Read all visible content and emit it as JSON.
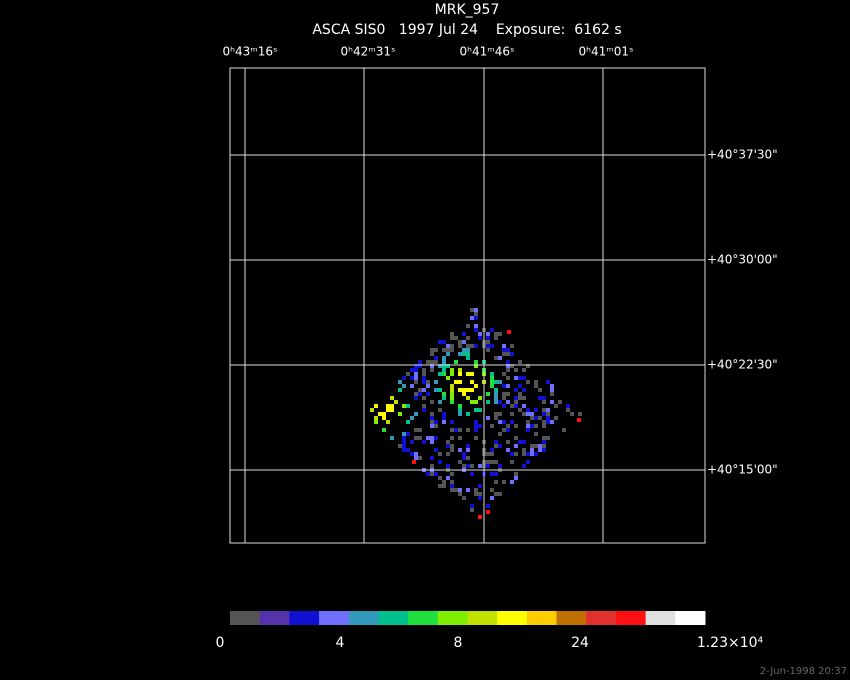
{
  "header": {
    "title": "MRK_957",
    "subtitle": "ASCA SIS0   1997 Jul 24    Exposure:  6162 s"
  },
  "ra_labels": [
    "0ʰ43ᵐ16ˢ",
    "0ʰ42ᵐ31ˢ",
    "0ʰ41ᵐ46ˢ",
    "0ʰ41ᵐ01ˢ"
  ],
  "dec_labels": [
    "+40°37'30\"",
    "+40°30'00\"",
    "+40°22'30\"",
    "+40°15'00\""
  ],
  "colorbar_labels": [
    "0",
    "4",
    "8",
    "24",
    "1.23×10⁴"
  ],
  "timestamp": "2-Jun-1998 20:37"
}
